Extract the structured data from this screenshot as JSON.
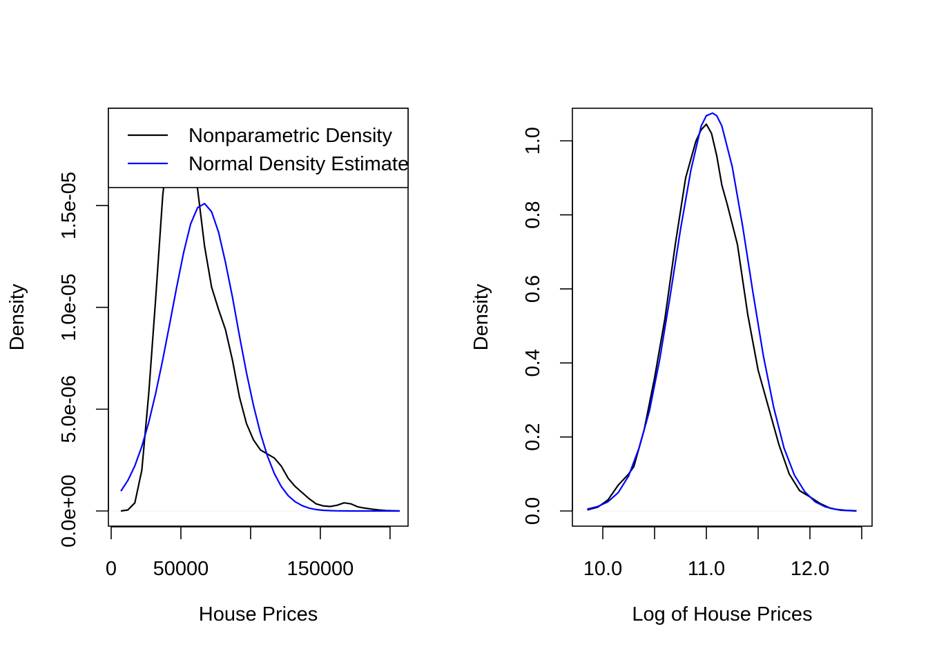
{
  "legend": {
    "entries": [
      {
        "label": "Nonparametric Density",
        "color": "#000000"
      },
      {
        "label": "Normal Density Estimate",
        "color": "#0000ff"
      }
    ],
    "placement": "top"
  },
  "chart_data": [
    {
      "type": "line",
      "xlabel": "House Prices",
      "ylabel": "Density",
      "xlim": [
        0,
        205000
      ],
      "ylim": [
        0,
        1.9e-05
      ],
      "grid": false,
      "x_ticks": [
        0,
        50000,
        100000,
        150000,
        200000
      ],
      "x_tick_labels": [
        "0",
        "50000",
        "",
        "150000",
        ""
      ],
      "y_ticks": [
        0,
        5e-06,
        1e-05,
        1.5e-05
      ],
      "y_tick_labels": [
        "0.0e+00",
        "5.0e-06",
        "1.0e-05",
        "1.5e-05"
      ],
      "series": [
        {
          "name": "Nonparametric Density",
          "color": "#000000",
          "x": [
            7000,
            12000,
            17000,
            22000,
            27000,
            32000,
            37000,
            42000,
            47000,
            52000,
            57000,
            62000,
            67000,
            72000,
            77000,
            82000,
            87000,
            92000,
            97000,
            102000,
            107000,
            112000,
            117000,
            122000,
            127000,
            132000,
            137000,
            142000,
            147000,
            152000,
            157000,
            162000,
            167000,
            172000,
            177000,
            182000,
            187000,
            192000,
            197000,
            207000
          ],
          "y": [
            0.0,
            5e-08,
            4e-07,
            2e-06,
            5.8e-06,
            1.05e-05,
            1.55e-05,
            1.85e-05,
            1.95e-05,
            1.9e-05,
            1.75e-05,
            1.58e-05,
            1.3e-05,
            1.1e-05,
            9.9e-06,
            8.9e-06,
            7.4e-06,
            5.6e-06,
            4.3e-06,
            3.5e-06,
            3e-06,
            2.8e-06,
            2.6e-06,
            2.2e-06,
            1.6e-06,
            1.2e-06,
            9e-07,
            6e-07,
            3.5e-07,
            2.5e-07,
            2.2e-07,
            2.8e-07,
            4e-07,
            3.5e-07,
            2e-07,
            1.4e-07,
            9e-08,
            5e-08,
            2e-08,
            0.0
          ]
        },
        {
          "name": "Normal Density Estimate",
          "color": "#0000ff",
          "x": [
            7000,
            12000,
            17000,
            22000,
            27000,
            32000,
            37000,
            42000,
            47000,
            52000,
            57000,
            62000,
            67000,
            72000,
            77000,
            82000,
            87000,
            92000,
            97000,
            102000,
            107000,
            112000,
            117000,
            122000,
            127000,
            132000,
            137000,
            142000,
            147000,
            152000,
            157000,
            162000,
            167000,
            172000,
            177000,
            182000,
            187000,
            192000,
            197000,
            207000
          ],
          "y": [
            9.8e-07,
            1.5e-06,
            2.22e-06,
            3.17e-06,
            4.36e-06,
            5.8e-06,
            7.43e-06,
            9.2e-06,
            1.1e-05,
            1.27e-05,
            1.41e-05,
            1.49e-05,
            1.51e-05,
            1.47e-05,
            1.37e-05,
            1.22e-05,
            1.05e-05,
            8.6e-06,
            6.8e-06,
            5.2e-06,
            3.83e-06,
            2.71e-06,
            1.84e-06,
            1.2e-06,
            7.5e-07,
            4.5e-07,
            2.6e-07,
            1.4e-07,
            7e-08,
            3.5e-08,
            1.6e-08,
            7e-09,
            3e-09,
            1e-09,
            0.0,
            0.0,
            0.0,
            0.0,
            0.0,
            0.0
          ]
        }
      ]
    },
    {
      "type": "line",
      "xlabel": "Log of House Prices",
      "ylabel": "Density",
      "xlim": [
        9.8,
        12.5
      ],
      "ylim": [
        0,
        1.075
      ],
      "grid": false,
      "x_ticks": [
        10.0,
        10.5,
        11.0,
        11.5,
        12.0,
        12.5
      ],
      "x_tick_labels": [
        "10.0",
        "",
        "11.0",
        "",
        "12.0",
        ""
      ],
      "y_ticks": [
        0.0,
        0.2,
        0.4,
        0.6,
        0.8,
        1.0
      ],
      "y_tick_labels": [
        "0.0",
        "0.2",
        "0.4",
        "0.6",
        "0.8",
        "1.0"
      ],
      "series": [
        {
          "name": "Nonparametric Density",
          "color": "#000000",
          "x": [
            9.85,
            9.95,
            10.05,
            10.15,
            10.25,
            10.3,
            10.4,
            10.5,
            10.6,
            10.7,
            10.8,
            10.9,
            10.95,
            11.0,
            11.05,
            11.1,
            11.15,
            11.2,
            11.3,
            11.4,
            11.5,
            11.6,
            11.7,
            11.8,
            11.9,
            12.0,
            12.1,
            12.2,
            12.3,
            12.45
          ],
          "y": [
            0.003,
            0.01,
            0.03,
            0.07,
            0.1,
            0.12,
            0.22,
            0.36,
            0.52,
            0.72,
            0.9,
            1.0,
            1.03,
            1.045,
            1.02,
            0.96,
            0.88,
            0.83,
            0.72,
            0.53,
            0.38,
            0.28,
            0.18,
            0.1,
            0.055,
            0.038,
            0.02,
            0.007,
            0.002,
            0.0
          ]
        },
        {
          "name": "Normal Density Estimate",
          "color": "#0000ff",
          "x": [
            9.85,
            9.95,
            10.05,
            10.15,
            10.25,
            10.35,
            10.45,
            10.55,
            10.65,
            10.75,
            10.85,
            10.95,
            11.0,
            11.06,
            11.1,
            11.15,
            11.25,
            11.35,
            11.45,
            11.55,
            11.65,
            11.75,
            11.85,
            11.95,
            12.05,
            12.15,
            12.25,
            12.35,
            12.45
          ],
          "y": [
            0.005,
            0.012,
            0.025,
            0.05,
            0.095,
            0.17,
            0.27,
            0.41,
            0.58,
            0.76,
            0.92,
            1.04,
            1.068,
            1.075,
            1.068,
            1.04,
            0.93,
            0.77,
            0.59,
            0.42,
            0.28,
            0.17,
            0.097,
            0.052,
            0.025,
            0.011,
            0.0045,
            0.0017,
            0.0006
          ]
        }
      ]
    }
  ]
}
